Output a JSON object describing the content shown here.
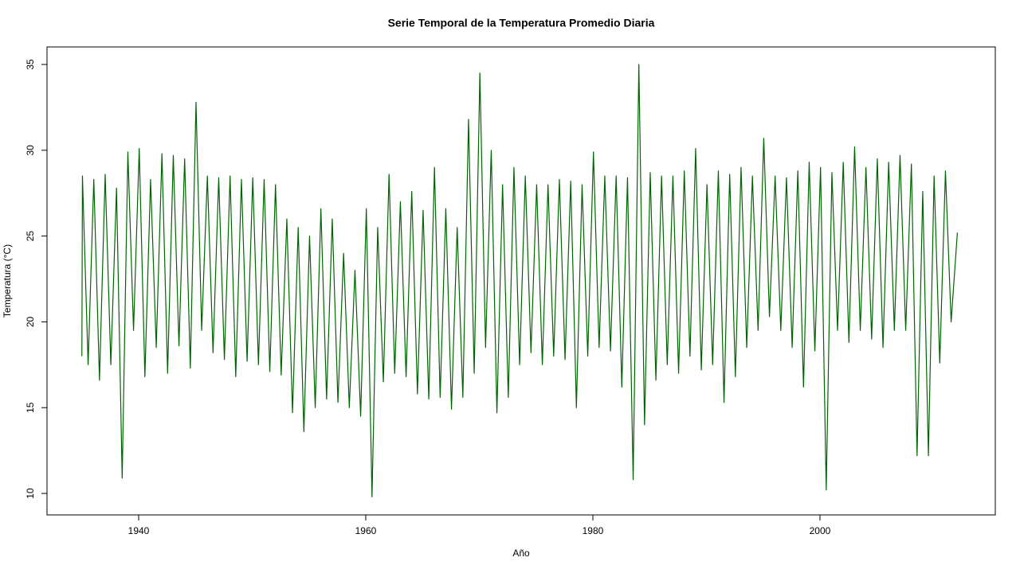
{
  "chart_data": {
    "type": "line",
    "title": "Serie Temporal de la Temperatura Promedio Diaria",
    "x_label": "Año",
    "y_label": "Temperatura (°C)",
    "xlim": [
      1931.93,
      2015.44
    ],
    "ylim": [
      8.75,
      36.02
    ],
    "xticks": [
      1940,
      1960,
      1980,
      2000
    ],
    "yticks": [
      10,
      15,
      20,
      25,
      30,
      35
    ],
    "series": [
      {
        "color": "#006400",
        "x": [
          1935.0,
          1935.05,
          1935.55,
          1936.05,
          1936.55,
          1937.05,
          1937.55,
          1938.05,
          1938.55,
          1939.05,
          1939.55,
          1940.05,
          1940.55,
          1941.05,
          1941.55,
          1942.05,
          1942.55,
          1943.05,
          1943.55,
          1944.05,
          1944.55,
          1945.05,
          1945.55,
          1946.05,
          1946.55,
          1947.05,
          1947.55,
          1948.05,
          1948.55,
          1949.05,
          1949.55,
          1950.05,
          1950.55,
          1951.05,
          1951.55,
          1952.05,
          1952.55,
          1953.05,
          1953.55,
          1954.05,
          1954.55,
          1955.05,
          1955.55,
          1956.05,
          1956.55,
          1957.05,
          1957.55,
          1958.05,
          1958.55,
          1959.05,
          1959.55,
          1960.05,
          1960.55,
          1961.05,
          1961.55,
          1962.05,
          1962.55,
          1963.05,
          1963.55,
          1964.05,
          1964.55,
          1965.05,
          1965.55,
          1966.05,
          1966.55,
          1967.05,
          1967.55,
          1968.05,
          1968.55,
          1969.05,
          1969.55,
          1970.05,
          1970.55,
          1971.05,
          1971.55,
          1972.05,
          1972.55,
          1973.05,
          1973.55,
          1974.05,
          1974.55,
          1975.05,
          1975.55,
          1976.05,
          1976.55,
          1977.05,
          1977.55,
          1978.05,
          1978.55,
          1979.05,
          1979.55,
          1980.05,
          1980.55,
          1981.05,
          1981.55,
          1982.05,
          1982.55,
          1983.05,
          1983.55,
          1984.05,
          1984.55,
          1985.05,
          1985.55,
          1986.05,
          1986.55,
          1987.05,
          1987.55,
          1988.05,
          1988.55,
          1989.05,
          1989.55,
          1990.05,
          1990.55,
          1991.05,
          1991.55,
          1992.05,
          1992.55,
          1993.05,
          1993.55,
          1994.05,
          1994.55,
          1995.05,
          1995.55,
          1996.05,
          1996.55,
          1997.05,
          1997.55,
          1998.05,
          1998.55,
          1999.05,
          1999.55,
          2000.05,
          2000.55,
          2001.05,
          2001.55,
          2002.05,
          2002.55,
          2003.05,
          2003.55,
          2004.05,
          2004.55,
          2005.05,
          2005.55,
          2006.05,
          2006.55,
          2007.05,
          2007.55,
          2008.05,
          2008.55,
          2009.05,
          2009.55,
          2010.05,
          2010.55,
          2011.05,
          2011.55,
          2012.1
        ],
        "values": [
          18.0,
          28.5,
          17.5,
          28.3,
          16.6,
          28.6,
          17.5,
          27.8,
          10.9,
          29.9,
          19.5,
          30.1,
          16.8,
          28.3,
          18.5,
          29.8,
          17.0,
          29.7,
          18.6,
          29.5,
          17.3,
          32.8,
          19.5,
          28.5,
          18.2,
          28.4,
          17.8,
          28.5,
          16.8,
          28.3,
          17.7,
          28.4,
          17.5,
          28.3,
          17.1,
          28.0,
          16.9,
          26.0,
          14.7,
          25.5,
          13.6,
          25.0,
          15.0,
          26.6,
          15.5,
          26.0,
          15.3,
          24.0,
          15.0,
          23.0,
          14.5,
          26.6,
          9.8,
          25.5,
          16.5,
          28.6,
          17.0,
          27.0,
          16.8,
          27.6,
          15.8,
          26.5,
          15.5,
          29.0,
          15.6,
          26.6,
          14.9,
          25.5,
          15.6,
          31.8,
          17.0,
          34.5,
          18.5,
          30.0,
          14.7,
          28.0,
          15.6,
          29.0,
          17.5,
          28.5,
          18.2,
          28.0,
          17.5,
          28.0,
          18.0,
          28.3,
          17.8,
          28.2,
          15.0,
          28.0,
          18.0,
          29.9,
          18.5,
          28.5,
          18.3,
          28.5,
          16.2,
          28.4,
          10.8,
          35.0,
          14.0,
          28.7,
          16.6,
          28.5,
          17.5,
          28.5,
          17.0,
          28.8,
          18.0,
          30.1,
          17.2,
          28.0,
          17.5,
          28.8,
          15.3,
          28.6,
          16.8,
          29.0,
          18.5,
          28.5,
          19.5,
          30.7,
          20.3,
          28.5,
          19.5,
          28.4,
          18.5,
          28.8,
          16.2,
          29.3,
          18.3,
          29.0,
          10.2,
          28.7,
          19.5,
          29.3,
          18.8,
          30.2,
          19.5,
          29.0,
          19.0,
          29.5,
          18.5,
          29.3,
          19.5,
          29.7,
          19.5,
          29.2,
          12.2,
          27.6,
          12.2,
          28.5,
          17.6,
          28.8,
          20.0,
          25.2
        ]
      }
    ]
  }
}
